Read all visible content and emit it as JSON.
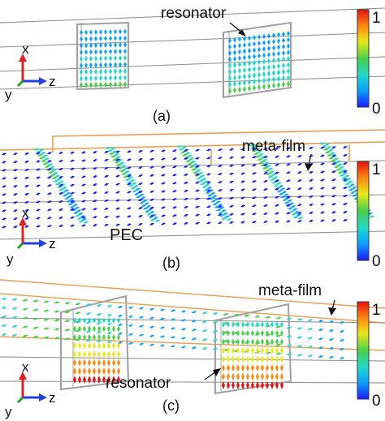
{
  "panels": [
    {
      "id": "a",
      "caption": "(a)",
      "annotations": [
        "resonator"
      ],
      "colorbar": {
        "max_label": "1",
        "min_label": "0"
      },
      "axes": {
        "x": "x",
        "y": "y",
        "z": "z"
      }
    },
    {
      "id": "b",
      "caption": "(b)",
      "annotations": [
        "meta-film",
        "PEC"
      ],
      "colorbar": {
        "max_label": "1",
        "min_label": "0"
      },
      "axes": {
        "x": "x",
        "y": "y",
        "z": "z"
      }
    },
    {
      "id": "c",
      "caption": "(c)",
      "annotations": [
        "meta-film",
        "resonator"
      ],
      "colorbar": {
        "max_label": "1",
        "min_label": "0"
      },
      "axes": {
        "x": "x",
        "y": "y",
        "z": "z"
      }
    }
  ],
  "colormap": [
    "#1a1aff",
    "#0aa0ff",
    "#22d8c8",
    "#4ad04a",
    "#e8e81a",
    "#ff8a10",
    "#e81010"
  ],
  "structure_colors": {
    "waveguide": "#8a8a8a",
    "resonator": "#a0a0a0",
    "meta_film": "#e8a050"
  }
}
